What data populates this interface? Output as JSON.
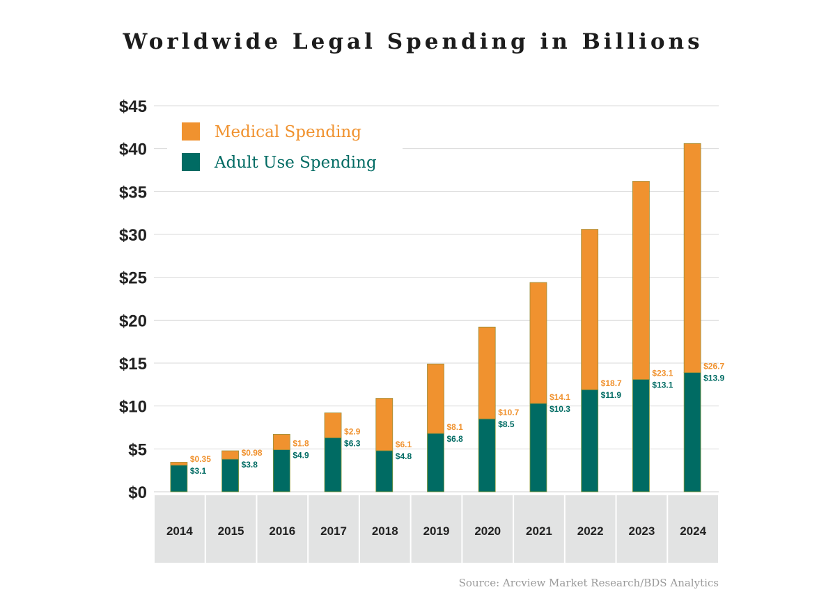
{
  "chart_data": {
    "type": "bar",
    "stacked": true,
    "title": "Worldwide Legal Spending in Billions",
    "categories": [
      "2014",
      "2015",
      "2016",
      "2017",
      "2018",
      "2019",
      "2020",
      "2021",
      "2022",
      "2023",
      "2024"
    ],
    "series": [
      {
        "name": "Adult Use Spending",
        "color": "#006b63",
        "values": [
          3.1,
          3.8,
          4.9,
          6.3,
          4.8,
          6.8,
          8.5,
          10.3,
          11.9,
          13.1,
          13.9
        ],
        "labels": [
          "$3.1",
          "$3.8",
          "$4.9",
          "$6.3",
          "$4.8",
          "$6.8",
          "$8.5",
          "$10.3",
          "$11.9",
          "$13.1",
          "$13.9"
        ]
      },
      {
        "name": "Medical Spending",
        "color": "#f0922f",
        "values": [
          0.35,
          0.98,
          1.8,
          2.9,
          6.1,
          8.1,
          10.7,
          14.1,
          18.7,
          23.1,
          26.7
        ],
        "labels": [
          "$0.35",
          "$0.98",
          "$1.8",
          "$2.9",
          "$6.1",
          "$8.1",
          "$10.7",
          "$14.1",
          "$18.7",
          "$23.1",
          "$26.7"
        ]
      }
    ],
    "ylim": [
      0,
      45
    ],
    "yticks": [
      "$0",
      "$5",
      "$10",
      "$15",
      "$20",
      "$25",
      "$30",
      "$35",
      "$40",
      "$45"
    ],
    "grid": true,
    "legend_position": "top-left",
    "source": "Source: Arcview Market Research/BDS Analytics"
  }
}
